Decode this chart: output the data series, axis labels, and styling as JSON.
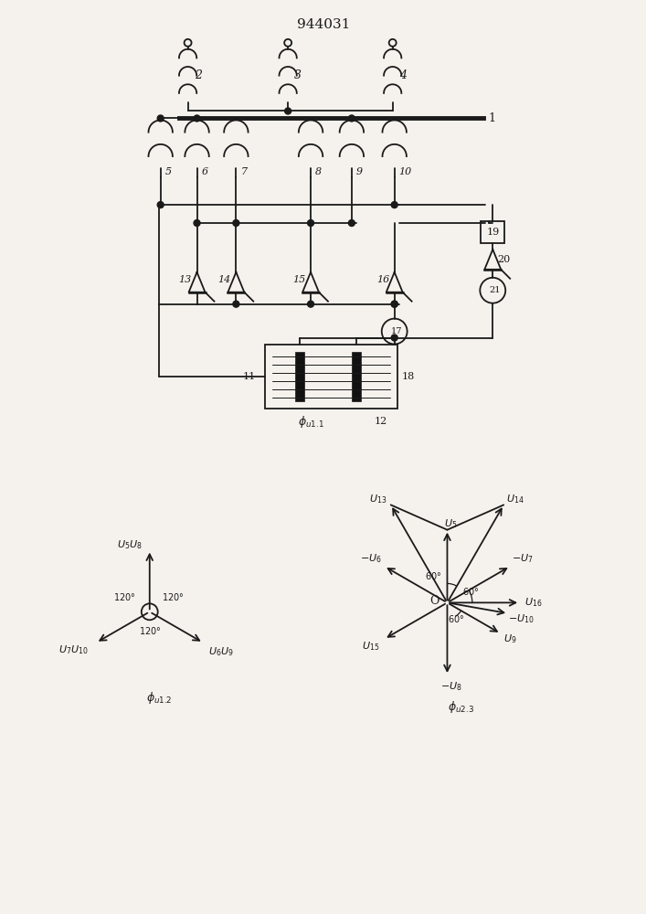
{
  "title": "944031",
  "bg_color": "#f5f2ed",
  "line_color": "#1a1a1a",
  "fig_width": 7.07,
  "fig_height": 10.0
}
